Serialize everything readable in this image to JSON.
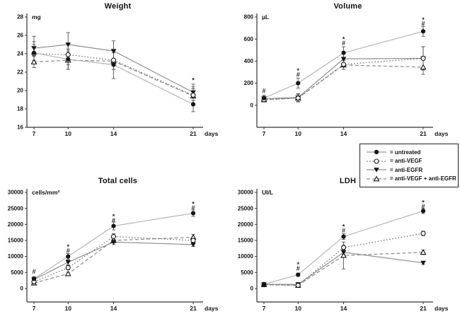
{
  "page": {
    "background": "#ffffff"
  },
  "legend": {
    "items": [
      {
        "series": "untreated",
        "label": "= untreated"
      },
      {
        "series": "anti-VEGF",
        "label": "= anti-VEGF"
      },
      {
        "series": "anti-EGFR",
        "label": "= anti-EGFR"
      },
      {
        "series": "anti-VEGF + anti-EGFR",
        "label": "= anti-VEGF + anti-EGFR"
      }
    ]
  },
  "series_styles": [
    {
      "name": "untreated",
      "marker": "circle-filled",
      "line": "solid",
      "line_color": "#b5b5b5",
      "marker_color": "#151515"
    },
    {
      "name": "anti-VEGF",
      "marker": "circle-open",
      "line": "dotted",
      "line_color": "#6e6e6e",
      "marker_color": "#151515"
    },
    {
      "name": "anti-EGFR",
      "marker": "triangle-down-filled",
      "line": "solid",
      "line_color": "#8f8f8f",
      "marker_color": "#151515"
    },
    {
      "name": "anti-VEGF + anti-EGFR",
      "marker": "triangle-up-open",
      "line": "dashed",
      "line_color": "#8a8a8a",
      "marker_color": "#151515"
    }
  ],
  "chart_data": [
    {
      "type": "line",
      "title": "Weight",
      "unit_label": "mg",
      "x_label": "days",
      "x": [
        7,
        10,
        14,
        21
      ],
      "ylim": [
        16,
        28
      ],
      "yticks": [
        16,
        18,
        20,
        22,
        24,
        26,
        28
      ],
      "axis_extend_below": 0,
      "grid": false,
      "series": [
        {
          "name": "untreated",
          "values": [
            24.1,
            23.4,
            22.8,
            18.5
          ],
          "err": [
            1.2,
            1.1,
            1.5,
            0.8
          ]
        },
        {
          "name": "anti-VEGF",
          "values": [
            24.0,
            23.9,
            23.3,
            19.5
          ],
          "err": [
            1.0,
            1.1,
            1.0,
            0.9
          ]
        },
        {
          "name": "anti-EGFR",
          "values": [
            24.6,
            25.0,
            24.3,
            19.8
          ],
          "err": [
            1.3,
            1.3,
            1.1,
            0.9
          ]
        },
        {
          "name": "anti-VEGF + anti-EGFR",
          "values": [
            23.1,
            23.3,
            23.2,
            19.4
          ],
          "err": [
            0.6,
            1.0,
            0.9,
            0.8
          ]
        }
      ],
      "annotations": [
        {
          "day": 21,
          "symbols": [
            "*"
          ],
          "y": 21.3
        }
      ]
    },
    {
      "type": "line",
      "title": "Volume",
      "unit_label": "µL",
      "x_label": "days",
      "x": [
        7,
        10,
        14,
        21
      ],
      "ylim": [
        0,
        800
      ],
      "yticks": [
        0,
        200,
        400,
        600,
        800
      ],
      "axis_extend_below": 200,
      "grid": false,
      "series": [
        {
          "name": "untreated",
          "values": [
            65,
            200,
            475,
            670
          ],
          "err": [
            25,
            45,
            55,
            45
          ]
        },
        {
          "name": "anti-VEGF",
          "values": [
            50,
            65,
            370,
            425
          ],
          "err": [
            20,
            35,
            45,
            105
          ]
        },
        {
          "name": "anti-EGFR",
          "values": [
            60,
            70,
            420,
            425
          ],
          "err": [
            20,
            35,
            45,
            105
          ]
        },
        {
          "name": "anti-VEGF + anti-EGFR",
          "values": [
            50,
            65,
            365,
            345
          ],
          "err": [
            20,
            35,
            40,
            65
          ]
        }
      ],
      "annotations": [
        {
          "day": 7,
          "symbols": [
            "#"
          ],
          "y": 130
        },
        {
          "day": 10,
          "symbols": [
            "*",
            "#"
          ],
          "y": 330
        },
        {
          "day": 14,
          "symbols": [
            "*",
            "#"
          ],
          "y": 615
        },
        {
          "day": 21,
          "symbols": [
            "*",
            "#"
          ],
          "y": 790
        }
      ]
    },
    {
      "type": "line",
      "title": "Total cells",
      "unit_label": "cells/mm³",
      "x_label": "days",
      "x": [
        7,
        10,
        14,
        21
      ],
      "ylim": [
        0,
        30000
      ],
      "yticks": [
        0,
        5000,
        10000,
        15000,
        20000,
        25000,
        30000
      ],
      "axis_extend_below": 4200,
      "grid": false,
      "series": [
        {
          "name": "untreated",
          "values": [
            3000,
            10000,
            19500,
            23500
          ],
          "err": [
            700,
            900,
            1200,
            1000
          ]
        },
        {
          "name": "anti-VEGF",
          "values": [
            2100,
            6500,
            16200,
            15000
          ],
          "err": [
            600,
            700,
            900,
            700
          ]
        },
        {
          "name": "anti-EGFR",
          "values": [
            2800,
            8200,
            14500,
            13700
          ],
          "err": [
            700,
            800,
            800,
            600
          ]
        },
        {
          "name": "anti-VEGF + anti-EGFR",
          "values": [
            1700,
            4600,
            15000,
            16000
          ],
          "err": [
            500,
            500,
            800,
            900
          ]
        }
      ],
      "annotations": [
        {
          "day": 7,
          "symbols": [
            "#"
          ],
          "y": 5300
        },
        {
          "day": 10,
          "symbols": [
            "*",
            "#"
          ],
          "y": 13600
        },
        {
          "day": 14,
          "symbols": [
            "*",
            "#"
          ],
          "y": 23100
        },
        {
          "day": 21,
          "symbols": [
            "*",
            "#"
          ],
          "y": 26900
        }
      ]
    },
    {
      "type": "line",
      "title": "LDH",
      "unit_label": "UI/L",
      "x_label": "days",
      "x": [
        7,
        10,
        14,
        21
      ],
      "ylim": [
        0,
        30000
      ],
      "yticks": [
        0,
        5000,
        10000,
        15000,
        20000,
        25000,
        30000
      ],
      "axis_extend_below": 4200,
      "grid": false,
      "series": [
        {
          "name": "untreated",
          "values": [
            1300,
            4300,
            16200,
            24200
          ],
          "err": [
            300,
            500,
            900,
            800
          ]
        },
        {
          "name": "anti-VEGF",
          "values": [
            1200,
            1000,
            12800,
            17200
          ],
          "err": [
            300,
            600,
            700,
            700
          ]
        },
        {
          "name": "anti-EGFR",
          "values": [
            1300,
            1300,
            11300,
            8000
          ],
          "err": [
            300,
            400,
            600,
            500
          ]
        },
        {
          "name": "anti-VEGF + anti-EGFR",
          "values": [
            1200,
            1000,
            10300,
            11300
          ],
          "err": [
            300,
            700,
            4200,
            700
          ]
        }
      ],
      "annotations": [
        {
          "day": 10,
          "symbols": [
            "*",
            "#"
          ],
          "y": 8100
        },
        {
          "day": 14,
          "symbols": [
            "*",
            "#"
          ],
          "y": 19900
        },
        {
          "day": 21,
          "symbols": [
            "*",
            "#"
          ],
          "y": 27400
        }
      ]
    }
  ]
}
